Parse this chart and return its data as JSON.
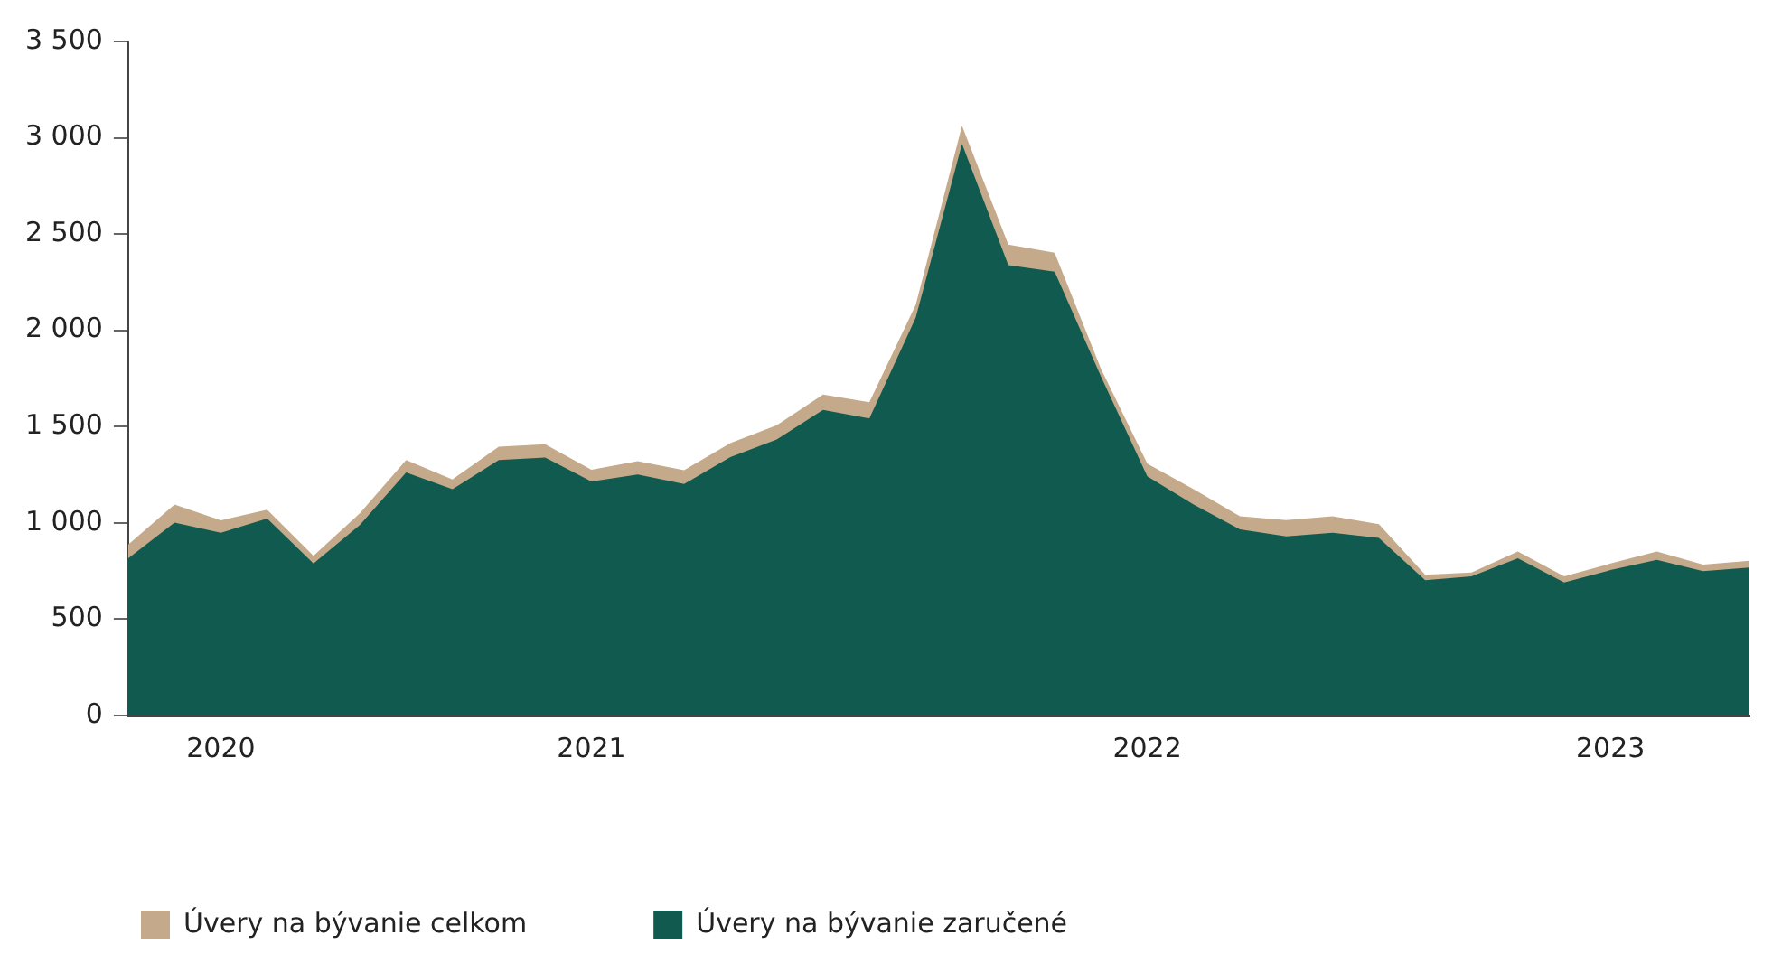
{
  "chart_data": {
    "type": "area",
    "categories": [
      null,
      null,
      "2020",
      null,
      null,
      null,
      null,
      null,
      null,
      null,
      "2021",
      null,
      null,
      null,
      null,
      null,
      null,
      null,
      null,
      null,
      null,
      null,
      "2022",
      null,
      null,
      null,
      null,
      null,
      null,
      null,
      null,
      null,
      "2023",
      null,
      null,
      null
    ],
    "series": [
      {
        "name": "Úvery na bývanie celkom",
        "color": "#c4aa8a",
        "values": [
          888,
          1095,
          1013,
          1069,
          829,
          1050,
          1326,
          1226,
          1396,
          1409,
          1276,
          1321,
          1274,
          1414,
          1507,
          1667,
          1627,
          2132,
          3062,
          2446,
          2403,
          1800,
          1308,
          1175,
          1034,
          1015,
          1034,
          994,
          731,
          742,
          851,
          723,
          789,
          851,
          784,
          803
        ]
      },
      {
        "name": "Úvery na bývanie zaručené",
        "color": "#115a4f",
        "values": [
          816,
          1002,
          949,
          1023,
          789,
          989,
          1262,
          1175,
          1326,
          1340,
          1215,
          1252,
          1202,
          1342,
          1433,
          1587,
          1542,
          2065,
          2969,
          2339,
          2305,
          1760,
          1242,
          1095,
          967,
          930,
          949,
          922,
          702,
          723,
          816,
          691,
          755,
          808,
          750,
          768
        ]
      }
    ],
    "ylim": [
      0,
      3500
    ],
    "yticks": [
      0,
      500,
      {
        "value": 1000,
        "label": "1 000"
      },
      {
        "value": 1500,
        "label": "1 500"
      },
      {
        "value": 2000,
        "label": "2 000"
      },
      {
        "value": 2500,
        "label": "2 500"
      },
      {
        "value": 3000,
        "label": "3 000"
      },
      {
        "value": 3500,
        "label": "3 500"
      }
    ],
    "grid": false,
    "legend": "bottom"
  }
}
